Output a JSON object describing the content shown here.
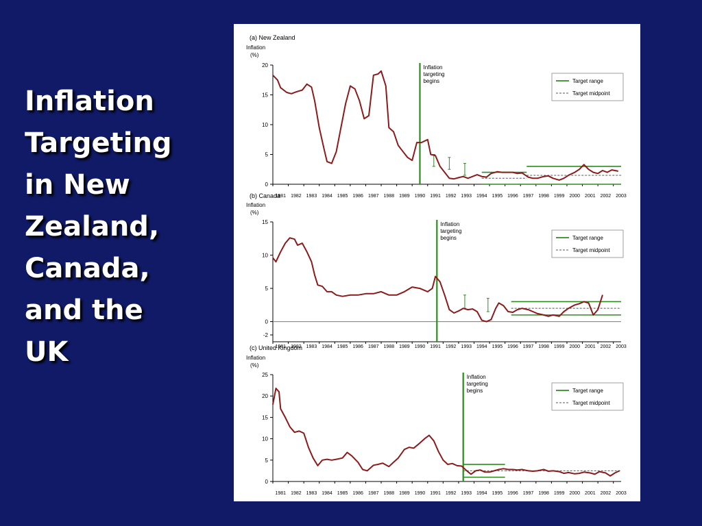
{
  "slide": {
    "title": "Inflation\nTargeting\nin New\nZealand,\nCanada,\nand the\nUK",
    "background": "#101a66",
    "title_color": "#ffffff"
  },
  "colors": {
    "inflation_line": "#8b1a1a",
    "target_green": "#2e8b20",
    "axis": "#000000",
    "midpoint": "#555555"
  },
  "chart_data": [
    {
      "type": "line",
      "panel_label": "(a) New Zealand",
      "ylabel": "Inflation\n(%)",
      "ylim": [
        0,
        20
      ],
      "yticks": [
        "0",
        "5",
        "10",
        "15",
        "20"
      ],
      "xlim": [
        1980.5,
        2003.0
      ],
      "xticks": [
        "1981",
        "1982",
        "1983",
        "1984",
        "1985",
        "1986",
        "1987",
        "1988",
        "1989",
        "1990",
        "1991",
        "1992",
        "1993",
        "1994",
        "1995",
        "1996",
        "1997",
        "1998",
        "1999",
        "2000",
        "2001",
        "2002",
        "2003"
      ],
      "annotation": "Inflation\ntargeting\nbegins",
      "targeting_start": 1990.0,
      "legend": {
        "position": "top-right",
        "entries": [
          "Target range",
          "Target midpoint"
        ]
      },
      "series": [
        {
          "points": [
            [
              1980.5,
              18.3
            ],
            [
              1980.8,
              17.5
            ],
            [
              1981.0,
              16.2
            ],
            [
              1981.4,
              15.4
            ],
            [
              1981.7,
              15.2
            ],
            [
              1982.0,
              15.5
            ],
            [
              1982.4,
              15.8
            ],
            [
              1982.7,
              16.8
            ],
            [
              1983.0,
              16.3
            ],
            [
              1983.2,
              14.0
            ],
            [
              1983.5,
              9.5
            ],
            [
              1983.8,
              6.0
            ],
            [
              1984.0,
              3.8
            ],
            [
              1984.3,
              3.5
            ],
            [
              1984.6,
              5.5
            ],
            [
              1984.9,
              9.5
            ],
            [
              1985.2,
              13.5
            ],
            [
              1985.5,
              16.5
            ],
            [
              1985.8,
              16.0
            ],
            [
              1986.1,
              14.0
            ],
            [
              1986.4,
              11.0
            ],
            [
              1986.7,
              11.5
            ],
            [
              1987.0,
              18.3
            ],
            [
              1987.3,
              18.5
            ],
            [
              1987.5,
              19.0
            ],
            [
              1987.8,
              16.5
            ],
            [
              1988.0,
              9.5
            ],
            [
              1988.3,
              8.8
            ],
            [
              1988.6,
              6.5
            ],
            [
              1988.9,
              5.5
            ],
            [
              1989.2,
              4.5
            ],
            [
              1989.5,
              4.0
            ],
            [
              1989.8,
              7.0
            ],
            [
              1990.1,
              7.0
            ],
            [
              1990.5,
              7.5
            ],
            [
              1990.7,
              5.0
            ],
            [
              1991.0,
              4.8
            ],
            [
              1991.3,
              3.0
            ],
            [
              1991.6,
              2.0
            ],
            [
              1991.9,
              1.0
            ],
            [
              1992.2,
              0.9
            ],
            [
              1992.5,
              1.1
            ],
            [
              1992.8,
              1.3
            ],
            [
              1993.1,
              1.0
            ],
            [
              1993.4,
              1.3
            ],
            [
              1993.7,
              1.6
            ],
            [
              1994.0,
              1.3
            ],
            [
              1994.3,
              1.2
            ],
            [
              1994.6,
              1.8
            ],
            [
              1995.0,
              2.1
            ],
            [
              1995.3,
              2.0
            ],
            [
              1995.6,
              2.0
            ],
            [
              1996.0,
              2.0
            ],
            [
              1996.3,
              1.8
            ],
            [
              1996.6,
              1.9
            ],
            [
              1997.0,
              1.2
            ],
            [
              1997.3,
              1.0
            ],
            [
              1997.6,
              1.0
            ],
            [
              1998.0,
              1.3
            ],
            [
              1998.3,
              1.4
            ],
            [
              1998.6,
              1.0
            ],
            [
              1999.0,
              0.7
            ],
            [
              1999.3,
              1.0
            ],
            [
              1999.6,
              1.5
            ],
            [
              2000.0,
              2.0
            ],
            [
              2000.3,
              2.5
            ],
            [
              2000.6,
              3.3
            ],
            [
              2000.9,
              2.5
            ],
            [
              2001.2,
              2.0
            ],
            [
              2001.5,
              1.8
            ],
            [
              2001.8,
              2.3
            ],
            [
              2002.1,
              2.0
            ],
            [
              2002.4,
              2.4
            ],
            [
              2002.8,
              2.2
            ]
          ]
        }
      ],
      "target_range": [
        {
          "x": [
            1994.0,
            1996.9
          ],
          "low": 0,
          "high": 2
        },
        {
          "x": [
            1996.9,
            2003.0
          ],
          "low": 0,
          "high": 3
        }
      ],
      "target_midpoint": [
        {
          "x": [
            1994.0,
            1996.9
          ],
          "y": 1.0
        },
        {
          "x": [
            1996.9,
            2003.0
          ],
          "y": 1.5
        }
      ],
      "interim_targets": [
        {
          "x": 1990.9,
          "low": 3,
          "high": 5
        },
        {
          "x": 1991.9,
          "low": 2.5,
          "high": 4.5
        },
        {
          "x": 1992.9,
          "low": 1.5,
          "high": 3.5
        }
      ]
    },
    {
      "type": "line",
      "panel_label": "(b) Canada",
      "ylabel": "Inflation\n(%)",
      "ylim": [
        -2,
        15
      ],
      "yticks": [
        "-2",
        "0",
        "5",
        "10",
        "15"
      ],
      "xlim": [
        1980.5,
        2003.0
      ],
      "xticks": [
        "1981",
        "1982",
        "1983",
        "1984",
        "1985",
        "1986",
        "1987",
        "1988",
        "1989",
        "1990",
        "1991",
        "1992",
        "1993",
        "1994",
        "1995",
        "1996",
        "1997",
        "1998",
        "1999",
        "2000",
        "2001",
        "2002",
        "2003"
      ],
      "annotation": "Inflation\ntargeting\nbegins",
      "targeting_start": 1991.1,
      "legend": {
        "position": "top-right",
        "entries": [
          "Target range",
          "Target midpoint"
        ]
      },
      "series": [
        {
          "points": [
            [
              1980.5,
              9.6
            ],
            [
              1980.7,
              9.0
            ],
            [
              1981.0,
              10.5
            ],
            [
              1981.3,
              11.8
            ],
            [
              1981.6,
              12.6
            ],
            [
              1981.9,
              12.4
            ],
            [
              1982.1,
              11.5
            ],
            [
              1982.4,
              11.8
            ],
            [
              1982.7,
              10.5
            ],
            [
              1983.0,
              9.0
            ],
            [
              1983.2,
              7.0
            ],
            [
              1983.4,
              5.5
            ],
            [
              1983.7,
              5.3
            ],
            [
              1984.0,
              4.5
            ],
            [
              1984.3,
              4.5
            ],
            [
              1984.6,
              4.0
            ],
            [
              1985.0,
              3.8
            ],
            [
              1985.5,
              4.0
            ],
            [
              1986.0,
              4.0
            ],
            [
              1986.5,
              4.2
            ],
            [
              1987.0,
              4.2
            ],
            [
              1987.5,
              4.5
            ],
            [
              1988.0,
              4.0
            ],
            [
              1988.5,
              4.0
            ],
            [
              1989.0,
              4.5
            ],
            [
              1989.5,
              5.2
            ],
            [
              1990.0,
              5.0
            ],
            [
              1990.5,
              4.5
            ],
            [
              1990.8,
              5.0
            ],
            [
              1991.0,
              6.8
            ],
            [
              1991.3,
              6.0
            ],
            [
              1991.6,
              4.0
            ],
            [
              1991.9,
              1.8
            ],
            [
              1992.2,
              1.3
            ],
            [
              1992.5,
              1.6
            ],
            [
              1992.8,
              2.0
            ],
            [
              1993.1,
              1.8
            ],
            [
              1993.4,
              1.9
            ],
            [
              1993.7,
              1.5
            ],
            [
              1994.0,
              0.2
            ],
            [
              1994.3,
              0.0
            ],
            [
              1994.6,
              0.3
            ],
            [
              1994.9,
              2.0
            ],
            [
              1995.1,
              2.8
            ],
            [
              1995.4,
              2.4
            ],
            [
              1995.7,
              1.5
            ],
            [
              1996.0,
              1.4
            ],
            [
              1996.3,
              1.8
            ],
            [
              1996.6,
              2.0
            ],
            [
              1997.0,
              1.8
            ],
            [
              1997.3,
              1.5
            ],
            [
              1997.6,
              1.2
            ],
            [
              1998.0,
              1.0
            ],
            [
              1998.3,
              0.8
            ],
            [
              1998.6,
              1.0
            ],
            [
              1999.0,
              0.8
            ],
            [
              1999.3,
              1.5
            ],
            [
              1999.6,
              2.0
            ],
            [
              2000.0,
              2.5
            ],
            [
              2000.3,
              2.7
            ],
            [
              2000.6,
              3.0
            ],
            [
              2000.9,
              2.8
            ],
            [
              2001.2,
              1.0
            ],
            [
              2001.5,
              1.8
            ],
            [
              2001.8,
              4.0
            ]
          ]
        }
      ],
      "target_range": [
        {
          "x": [
            1995.9,
            2003.0
          ],
          "low": 1,
          "high": 3
        }
      ],
      "target_midpoint": [
        {
          "x": [
            1995.9,
            2003.0
          ],
          "y": 2.0
        }
      ],
      "interim_targets": [
        {
          "x": 1992.9,
          "low": 2,
          "high": 4
        },
        {
          "x": 1994.4,
          "low": 1.5,
          "high": 3.5
        }
      ]
    },
    {
      "type": "line",
      "panel_label": "(c) United Kingdom",
      "ylabel": "Inflation\n(%)",
      "ylim": [
        0,
        25
      ],
      "yticks": [
        "0",
        "5",
        "10",
        "15",
        "20",
        "25"
      ],
      "xlim": [
        1980.5,
        2003.0
      ],
      "xticks": [
        "1981",
        "1982",
        "1983",
        "1984",
        "1985",
        "1986",
        "1987",
        "1988",
        "1989",
        "1990",
        "1991",
        "1992",
        "1993",
        "1994",
        "1995",
        "1996",
        "1997",
        "1998",
        "1999",
        "2000",
        "2001",
        "2002",
        "2003"
      ],
      "annotation": "Inflation\ntargeting\nbegins",
      "targeting_start": 1992.8,
      "legend": {
        "position": "top-right",
        "entries": [
          "Target range",
          "Target midpoint"
        ]
      },
      "series": [
        {
          "points": [
            [
              1980.5,
              18.0
            ],
            [
              1980.7,
              21.8
            ],
            [
              1980.9,
              21.0
            ],
            [
              1981.0,
              17.0
            ],
            [
              1981.3,
              15.0
            ],
            [
              1981.6,
              12.8
            ],
            [
              1981.9,
              11.5
            ],
            [
              1982.2,
              11.8
            ],
            [
              1982.5,
              11.3
            ],
            [
              1982.8,
              8.0
            ],
            [
              1983.1,
              5.5
            ],
            [
              1983.4,
              3.7
            ],
            [
              1983.7,
              5.0
            ],
            [
              1984.0,
              5.2
            ],
            [
              1984.3,
              5.0
            ],
            [
              1984.6,
              5.2
            ],
            [
              1985.0,
              5.5
            ],
            [
              1985.3,
              6.8
            ],
            [
              1985.6,
              6.0
            ],
            [
              1986.0,
              4.5
            ],
            [
              1986.3,
              2.8
            ],
            [
              1986.6,
              2.5
            ],
            [
              1987.0,
              3.8
            ],
            [
              1987.3,
              4.0
            ],
            [
              1987.6,
              4.3
            ],
            [
              1988.0,
              3.5
            ],
            [
              1988.3,
              4.5
            ],
            [
              1988.6,
              5.5
            ],
            [
              1989.0,
              7.5
            ],
            [
              1989.3,
              8.0
            ],
            [
              1989.6,
              7.8
            ],
            [
              1990.0,
              9.0
            ],
            [
              1990.3,
              10.0
            ],
            [
              1990.6,
              10.8
            ],
            [
              1990.9,
              9.5
            ],
            [
              1991.2,
              7.0
            ],
            [
              1991.5,
              5.0
            ],
            [
              1991.8,
              4.0
            ],
            [
              1992.1,
              4.2
            ],
            [
              1992.4,
              3.7
            ],
            [
              1992.7,
              3.6
            ],
            [
              1993.0,
              2.6
            ],
            [
              1993.3,
              1.7
            ],
            [
              1993.6,
              2.5
            ],
            [
              1993.9,
              2.7
            ],
            [
              1994.2,
              2.2
            ],
            [
              1994.5,
              2.2
            ],
            [
              1994.8,
              2.5
            ],
            [
              1995.1,
              2.8
            ],
            [
              1995.4,
              3.0
            ],
            [
              1995.7,
              2.8
            ],
            [
              1996.0,
              2.8
            ],
            [
              1996.3,
              2.7
            ],
            [
              1996.6,
              2.8
            ],
            [
              1997.0,
              2.5
            ],
            [
              1997.3,
              2.4
            ],
            [
              1997.6,
              2.5
            ],
            [
              1998.0,
              2.8
            ],
            [
              1998.3,
              2.4
            ],
            [
              1998.6,
              2.5
            ],
            [
              1999.0,
              2.3
            ],
            [
              1999.3,
              1.9
            ],
            [
              1999.6,
              2.1
            ],
            [
              2000.0,
              1.8
            ],
            [
              2000.3,
              1.9
            ],
            [
              2000.6,
              2.2
            ],
            [
              2001.0,
              2.0
            ],
            [
              2001.3,
              1.7
            ],
            [
              2001.6,
              2.3
            ],
            [
              2002.0,
              2.0
            ],
            [
              2002.3,
              1.3
            ],
            [
              2002.6,
              2.0
            ],
            [
              2002.9,
              2.5
            ]
          ]
        }
      ],
      "target_range": [
        {
          "x": [
            1992.8,
            1995.5
          ],
          "low": 1,
          "high": 4
        }
      ],
      "target_midpoint": [
        {
          "x": [
            1992.8,
            1995.5
          ],
          "y": 2.5
        },
        {
          "x": [
            1995.5,
            2003.0
          ],
          "y": 2.5
        }
      ],
      "interim_targets": []
    }
  ]
}
